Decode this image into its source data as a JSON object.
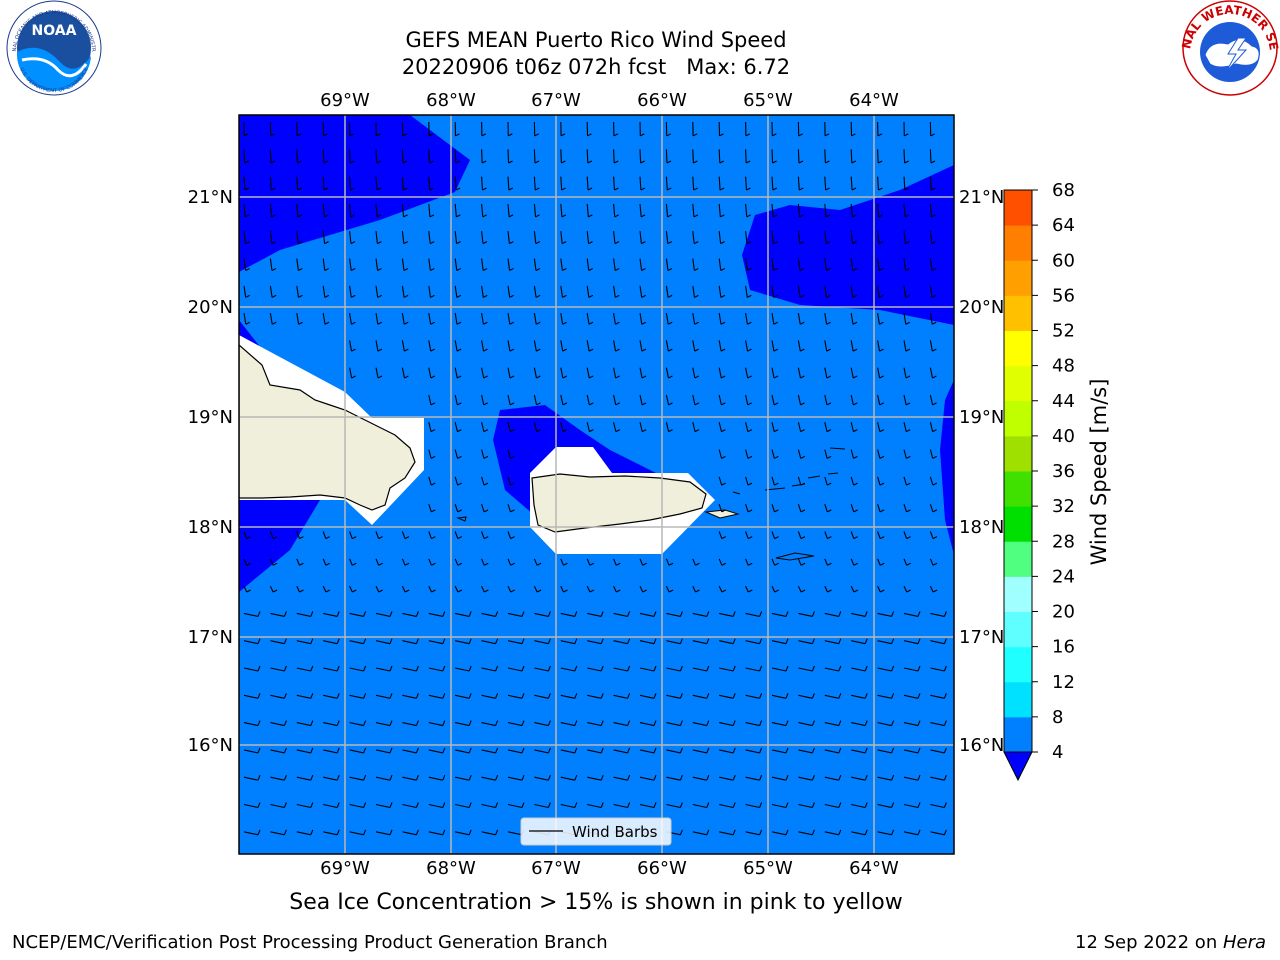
{
  "title_line1": "GEFS MEAN Puerto Rico Wind Speed",
  "title_line2": "20220906 t06z 072h fcst   Max: 6.72",
  "note": "Sea Ice Concentration > 15% is shown in pink to yellow",
  "footer_left": "NCEP/EMC/Verification Post Processing Product Generation Branch",
  "footer_date": "12 Sep 2022 on ",
  "footer_machine": "Hera",
  "legend_label": "Wind Barbs",
  "colorbar": {
    "label": "Wind Speed [m/s]",
    "ticks": [
      "4",
      "8",
      "12",
      "16",
      "20",
      "24",
      "28",
      "32",
      "36",
      "40",
      "44",
      "48",
      "52",
      "56",
      "60",
      "64",
      "68"
    ],
    "colors": [
      "#0080ff",
      "#00e0ff",
      "#20ffff",
      "#60ffff",
      "#a0ffff",
      "#50ff80",
      "#00e000",
      "#40e000",
      "#a0e000",
      "#c0ff00",
      "#e0ff00",
      "#ffff00",
      "#ffc000",
      "#ffa000",
      "#ff8000",
      "#ff5000",
      "#ff2000",
      "#ff0000"
    ],
    "under_color": "#0000ff"
  },
  "lon_labels": [
    "69°W",
    "68°W",
    "67°W",
    "66°W",
    "65°W",
    "64°W"
  ],
  "lat_labels": [
    "21°N",
    "20°N",
    "19°N",
    "18°N",
    "17°N",
    "16°N"
  ],
  "logos": {
    "noaa": "NOAA",
    "noaa_ring": "NATIONAL OCEANIC AND ATMOSPHERIC ADMINISTRATION",
    "noaa_ring_bottom": "U.S. DEPARTMENT OF COMMERCE",
    "nws_ring": "NATIONAL WEATHER SERVICE"
  },
  "field_colors": {
    "low": "#0000ff",
    "mid": "#0080ff",
    "land": "#efefdc",
    "mask": "#ffffff"
  }
}
